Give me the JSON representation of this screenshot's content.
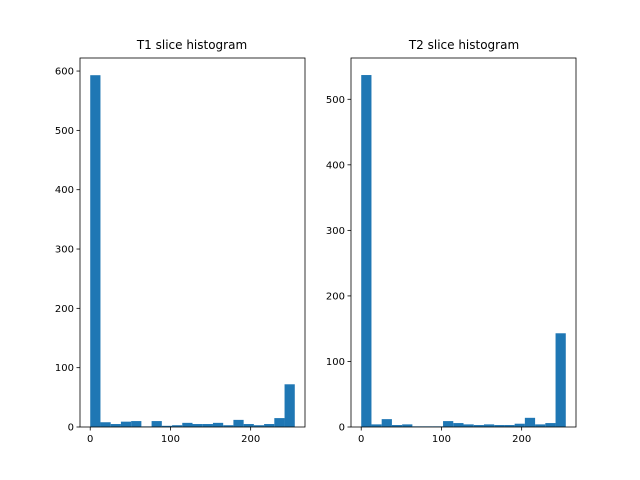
{
  "chart_data": [
    {
      "type": "bar",
      "title": "T1 slice histogram",
      "xlabel": "",
      "ylabel": "",
      "xlim": [
        -12.75,
        267.75
      ],
      "ylim": [
        0,
        622
      ],
      "xticks": [
        0,
        100,
        200
      ],
      "yticks": [
        0,
        100,
        200,
        300,
        400,
        500,
        600
      ],
      "grid": false,
      "bar_color": "#1f77b4",
      "bin_edges": [
        0,
        12.75,
        25.5,
        38.25,
        51,
        63.75,
        76.5,
        89.25,
        102,
        114.75,
        127.5,
        140.25,
        153,
        165.75,
        178.5,
        191.25,
        204,
        216.75,
        229.5,
        242.25,
        255
      ],
      "values": [
        593,
        8,
        5,
        9,
        10,
        1,
        10,
        2,
        3,
        7,
        5,
        5,
        7,
        3,
        12,
        5,
        3,
        5,
        15,
        72
      ]
    },
    {
      "type": "bar",
      "title": "T2 slice histogram",
      "xlabel": "",
      "ylabel": "",
      "xlim": [
        -12.75,
        267.75
      ],
      "ylim": [
        0,
        563
      ],
      "xticks": [
        0,
        100,
        200
      ],
      "yticks": [
        0,
        100,
        200,
        300,
        400,
        500
      ],
      "grid": false,
      "bar_color": "#1f77b4",
      "bin_edges": [
        0,
        12.75,
        25.5,
        38.25,
        51,
        63.75,
        76.5,
        89.25,
        102,
        114.75,
        127.5,
        140.25,
        153,
        165.75,
        178.5,
        191.25,
        204,
        216.75,
        229.5,
        242.25,
        255
      ],
      "values": [
        537,
        4,
        12,
        3,
        4,
        1,
        1,
        1,
        9,
        6,
        4,
        3,
        4,
        3,
        3,
        5,
        14,
        4,
        6,
        143
      ]
    }
  ]
}
